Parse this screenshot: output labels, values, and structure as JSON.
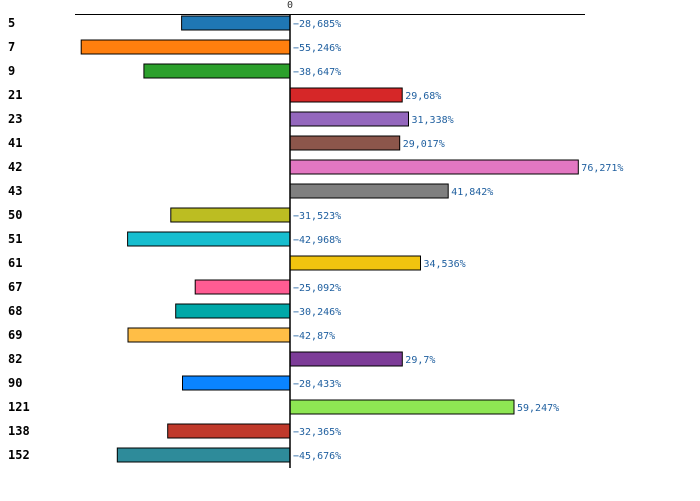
{
  "chart_data": {
    "type": "bar",
    "orientation": "horizontal",
    "zero_tick_label": "0",
    "categories": [
      "5",
      "7",
      "9",
      "21",
      "23",
      "41",
      "42",
      "43",
      "50",
      "51",
      "61",
      "67",
      "68",
      "69",
      "82",
      "90",
      "121",
      "138",
      "152"
    ],
    "values": [
      -28.685,
      -55.246,
      -38.647,
      29.68,
      31.338,
      29.017,
      76.271,
      41.842,
      -31.523,
      -42.968,
      34.536,
      -25.092,
      -30.246,
      -42.87,
      29.7,
      -28.433,
      59.247,
      -32.365,
      -45.676
    ],
    "value_labels": [
      "−28,685%",
      "−55,246%",
      "−38,647%",
      "29,68%",
      "31,338%",
      "29,017%",
      "76,271%",
      "41,842%",
      "−31,523%",
      "−42,968%",
      "34,536%",
      "−25,092%",
      "−30,246%",
      "−42,87%",
      "29,7%",
      "−28,433%",
      "59,247%",
      "−32,365%",
      "−45,676%"
    ],
    "colors": [
      "#1f77b4",
      "#ff7f0e",
      "#2ca02c",
      "#d62728",
      "#9467bd",
      "#8c564b",
      "#e377c2",
      "#7f7f7f",
      "#bcbd22",
      "#17becf",
      "#f1c40f",
      "#ff5c93",
      "#00a8a8",
      "#ffbe46",
      "#7d3c98",
      "#0a84ff",
      "#8ee653",
      "#c0392b",
      "#2e8b9a"
    ],
    "label_color": "#1f5f9f",
    "xlim": [
      -55.7,
      77.5
    ],
    "title": "",
    "xlabel": "",
    "ylabel": ""
  }
}
